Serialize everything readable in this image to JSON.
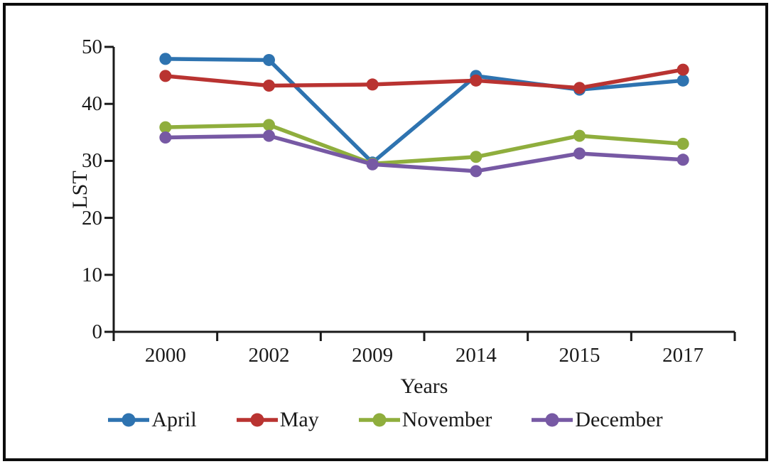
{
  "figure": {
    "y_axis_title": "LST",
    "x_axis_title": "Years"
  },
  "colors": {
    "axis": "#1a1a1a",
    "text": "#1a1a1a",
    "frame_border": "#0d0d0d",
    "background": "#ffffff"
  },
  "chart_data": {
    "type": "line",
    "title": "",
    "xlabel": "Years",
    "ylabel": "LST",
    "categories": [
      "2000",
      "2002",
      "2009",
      "2014",
      "2015",
      "2017"
    ],
    "series": [
      {
        "name": "April",
        "color": "#2E73B0",
        "values": [
          47.9,
          47.7,
          29.7,
          44.9,
          42.5,
          44.1
        ]
      },
      {
        "name": "May",
        "color": "#B93331",
        "values": [
          44.9,
          43.2,
          43.4,
          44.1,
          42.8,
          46.0
        ]
      },
      {
        "name": "November",
        "color": "#8FAE3D",
        "values": [
          35.9,
          36.3,
          29.5,
          30.7,
          34.4,
          33.0
        ]
      },
      {
        "name": "December",
        "color": "#7759A4",
        "values": [
          34.1,
          34.4,
          29.4,
          28.2,
          31.3,
          30.2
        ]
      }
    ],
    "ylim": [
      0,
      50
    ],
    "y_ticks": [
      0,
      10,
      20,
      30,
      40,
      50
    ],
    "grid": false,
    "legend_position": "bottom",
    "marker": "circle"
  }
}
